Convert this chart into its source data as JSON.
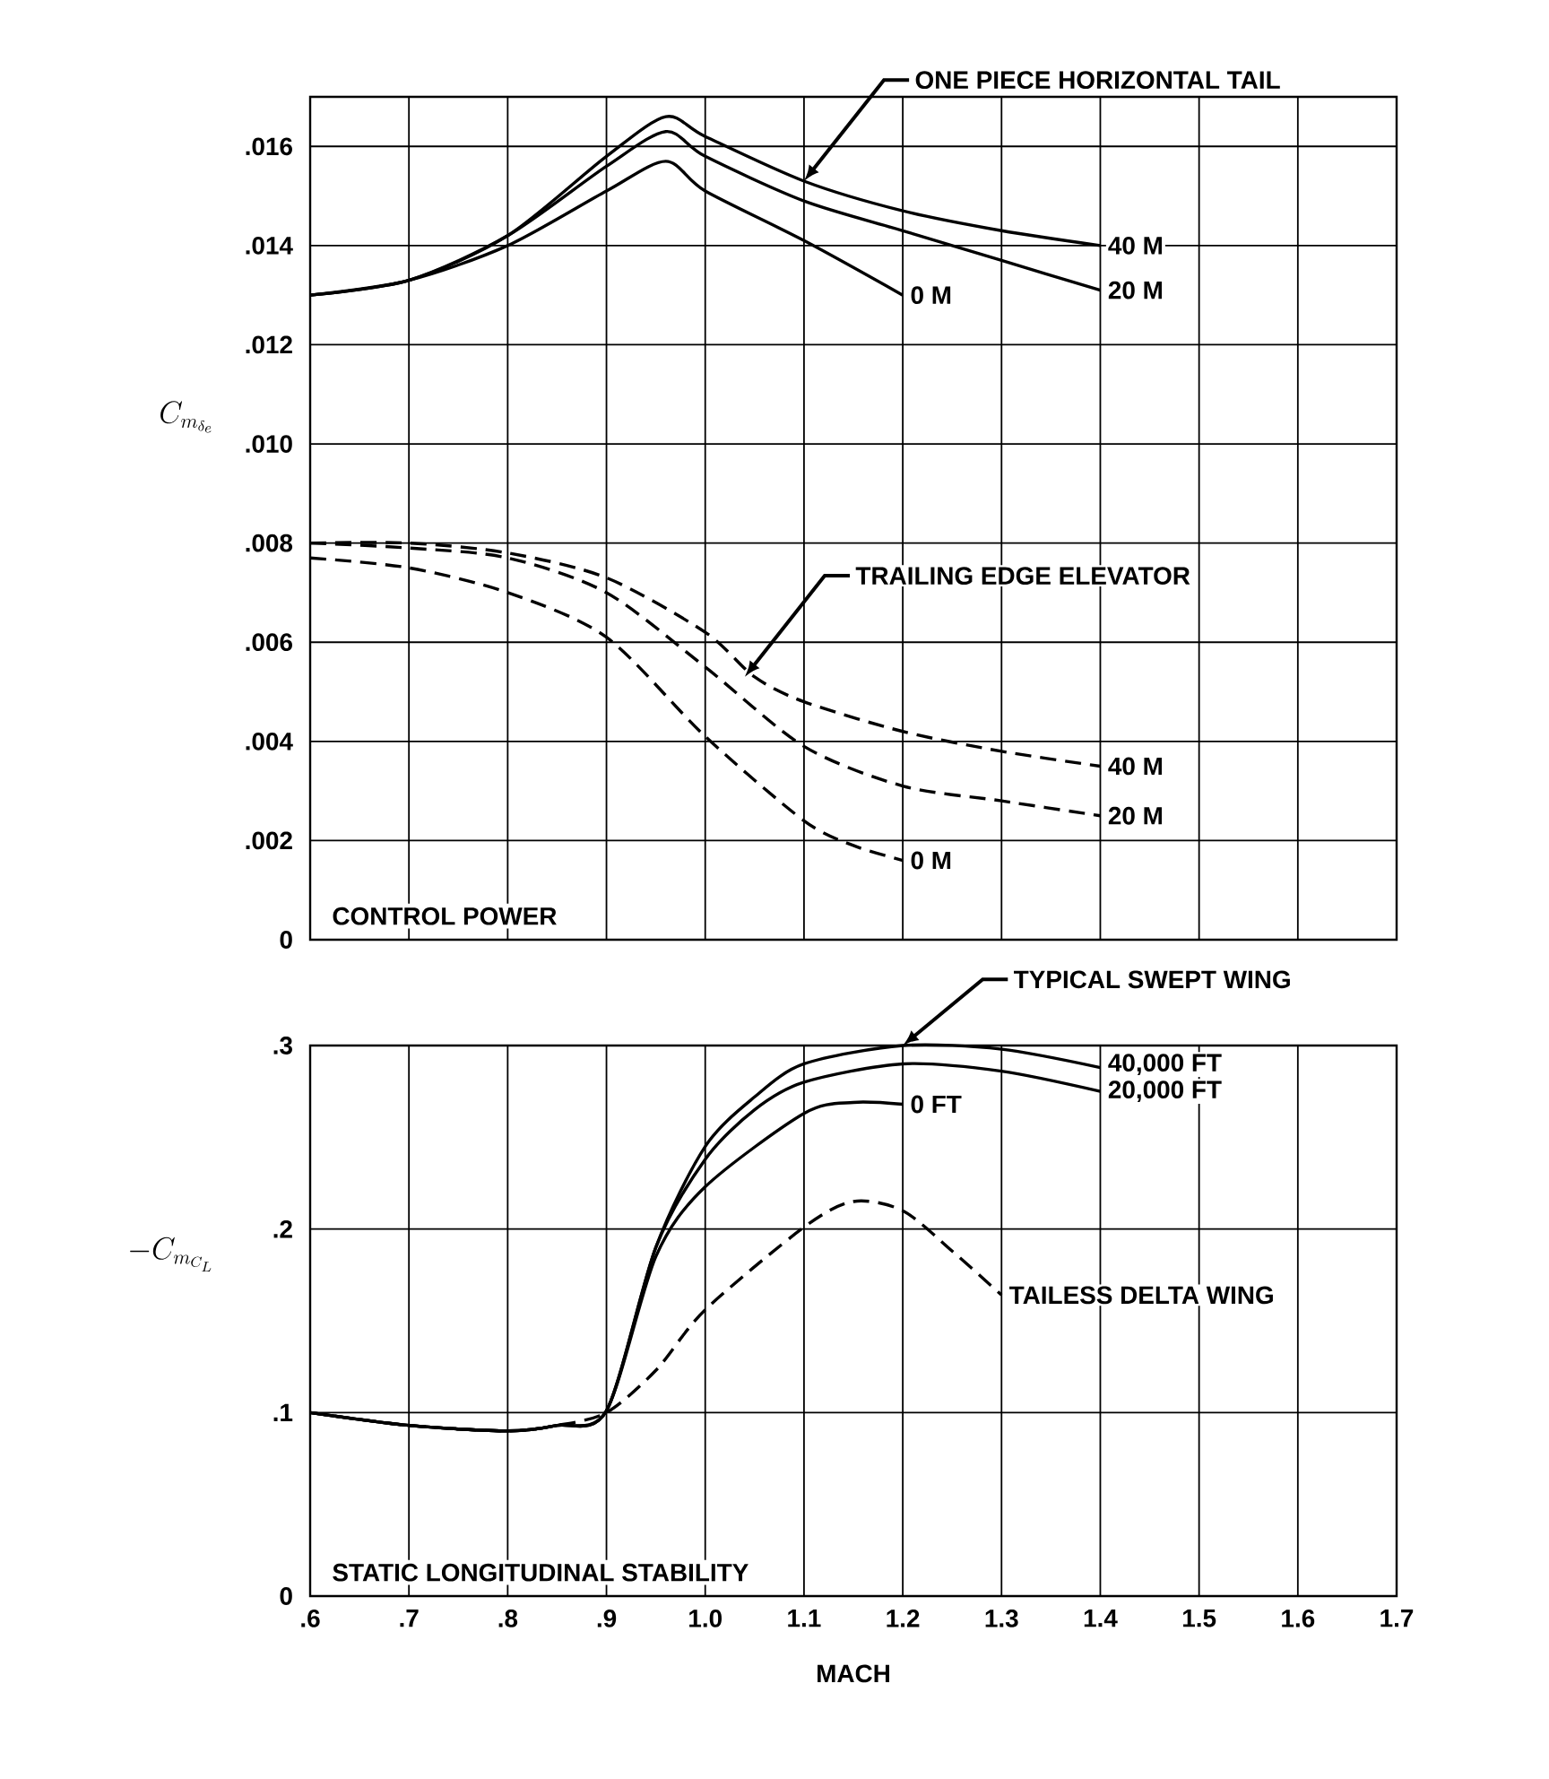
{
  "chart_data": [
    {
      "type": "line",
      "ylabel": "C_{m_{\\delta_e}}",
      "xlim": [
        0.6,
        1.7
      ],
      "ylim": [
        0,
        0.017
      ],
      "grid": true,
      "tick_labels": "y",
      "xticks": [
        0.6,
        0.7,
        0.8,
        0.9,
        1.0,
        1.1,
        1.2,
        1.3,
        1.4,
        1.5,
        1.6,
        1.7
      ],
      "yticks": [
        0,
        {
          "value": 0.002,
          "label": ".002"
        },
        {
          "value": 0.004,
          "label": ".004"
        },
        {
          "value": 0.006,
          "label": ".006"
        },
        {
          "value": 0.008,
          "label": ".008"
        },
        {
          "value": 0.01,
          "label": ".010"
        },
        {
          "value": 0.012,
          "label": ".012"
        },
        {
          "value": 0.014,
          "label": ".014"
        },
        {
          "value": 0.016,
          "label": ".016"
        }
      ],
      "annotations": [
        {
          "text": "ONE PIECE HORIZONTAL TAIL",
          "x": 1.1,
          "y": 0.0153
        },
        {
          "text": "TRAILING EDGE ELEVATOR",
          "x": 1.04,
          "y": 0.0053
        },
        "CONTROL POWER"
      ],
      "series": [
        {
          "name": "40 M",
          "color": "#000000",
          "line_style": "solid",
          "x": [
            0.6,
            0.7,
            0.8,
            0.9,
            0.96,
            1.0,
            1.1,
            1.2,
            1.3,
            1.4
          ],
          "values": [
            0.013,
            0.0133,
            0.0142,
            0.0158,
            0.0166,
            0.0162,
            0.0153,
            0.0147,
            0.0143,
            0.014
          ]
        },
        {
          "name": "20 M",
          "color": "#000000",
          "line_style": "solid",
          "x": [
            0.6,
            0.7,
            0.8,
            0.9,
            0.96,
            1.0,
            1.1,
            1.2,
            1.3,
            1.4
          ],
          "values": [
            0.013,
            0.0133,
            0.0142,
            0.0156,
            0.0163,
            0.0158,
            0.0149,
            0.0143,
            0.0137,
            0.0131
          ]
        },
        {
          "name": "0 M",
          "color": "#000000",
          "line_style": "solid",
          "x": [
            0.6,
            0.7,
            0.8,
            0.9,
            0.96,
            1.0,
            1.1,
            1.2
          ],
          "values": [
            0.013,
            0.0133,
            0.014,
            0.0151,
            0.0157,
            0.0151,
            0.0141,
            0.013
          ]
        },
        {
          "name": "40 M",
          "color": "#000000",
          "line_style": "dashed",
          "x": [
            0.6,
            0.7,
            0.8,
            0.9,
            1.0,
            1.05,
            1.1,
            1.2,
            1.3,
            1.4
          ],
          "values": [
            0.008,
            0.008,
            0.0078,
            0.0073,
            0.0062,
            0.0053,
            0.0048,
            0.0042,
            0.0038,
            0.0035
          ]
        },
        {
          "name": "20 M",
          "color": "#000000",
          "line_style": "dashed",
          "x": [
            0.6,
            0.7,
            0.8,
            0.9,
            1.0,
            1.1,
            1.2,
            1.3,
            1.4
          ],
          "values": [
            0.008,
            0.0079,
            0.0077,
            0.007,
            0.0055,
            0.0039,
            0.0031,
            0.0028,
            0.0025
          ]
        },
        {
          "name": "0 M",
          "color": "#000000",
          "line_style": "dashed",
          "x": [
            0.6,
            0.7,
            0.8,
            0.9,
            1.0,
            1.1,
            1.15,
            1.2
          ],
          "values": [
            0.0077,
            0.0075,
            0.007,
            0.0061,
            0.0041,
            0.0024,
            0.0019,
            0.0016
          ]
        }
      ]
    },
    {
      "type": "line",
      "ylabel": "-C_{m_{C_L}}",
      "xlabel": "MACH",
      "xlim": [
        0.6,
        1.7
      ],
      "ylim": [
        0,
        0.3
      ],
      "grid": true,
      "xticks": [
        {
          "value": 0.6,
          "label": ".6"
        },
        {
          "value": 0.7,
          "label": ".7"
        },
        {
          "value": 0.8,
          "label": ".8"
        },
        {
          "value": 0.9,
          "label": ".9"
        },
        {
          "value": 1.0,
          "label": "1.0"
        },
        1.1,
        1.2,
        1.3,
        1.4,
        1.5,
        1.6,
        1.7
      ],
      "yticks": [
        0,
        {
          "value": 0.1,
          "label": ".1"
        },
        {
          "value": 0.2,
          "label": ".2"
        },
        {
          "value": 0.3,
          "label": ".3"
        }
      ],
      "annotations": [
        {
          "text": "TYPICAL SWEPT WING",
          "x": 1.2,
          "y": 0.3
        },
        "STATIC LONGITUDINAL STABILITY"
      ],
      "series": [
        {
          "name": "40,000 FT",
          "color": "#000000",
          "line_style": "solid",
          "x": [
            0.6,
            0.7,
            0.8,
            0.85,
            0.9,
            0.95,
            1.0,
            1.05,
            1.1,
            1.2,
            1.3,
            1.4
          ],
          "values": [
            0.1,
            0.093,
            0.09,
            0.093,
            0.101,
            0.19,
            0.245,
            0.272,
            0.29,
            0.3,
            0.298,
            0.288
          ]
        },
        {
          "name": "20,000 FT",
          "color": "#000000",
          "line_style": "solid",
          "x": [
            0.6,
            0.7,
            0.8,
            0.85,
            0.9,
            0.95,
            1.0,
            1.05,
            1.1,
            1.2,
            1.3,
            1.4
          ],
          "values": [
            0.1,
            0.093,
            0.09,
            0.093,
            0.101,
            0.19,
            0.238,
            0.265,
            0.28,
            0.29,
            0.286,
            0.275
          ]
        },
        {
          "name": "0 FT",
          "color": "#000000",
          "line_style": "solid",
          "x": [
            0.6,
            0.7,
            0.8,
            0.85,
            0.9,
            0.95,
            1.0,
            1.1,
            1.15,
            1.2
          ],
          "values": [
            0.1,
            0.093,
            0.09,
            0.093,
            0.101,
            0.185,
            0.223,
            0.263,
            0.269,
            0.268
          ]
        },
        {
          "name": "TAILESS DELTA WING",
          "color": "#000000",
          "line_style": "dashed",
          "x": [
            0.6,
            0.7,
            0.8,
            0.85,
            0.9,
            0.95,
            1.0,
            1.1,
            1.15,
            1.2,
            1.25,
            1.3
          ],
          "values": [
            0.1,
            0.093,
            0.09,
            0.093,
            0.1,
            0.123,
            0.156,
            0.201,
            0.215,
            0.21,
            0.188,
            0.164
          ]
        }
      ]
    }
  ]
}
